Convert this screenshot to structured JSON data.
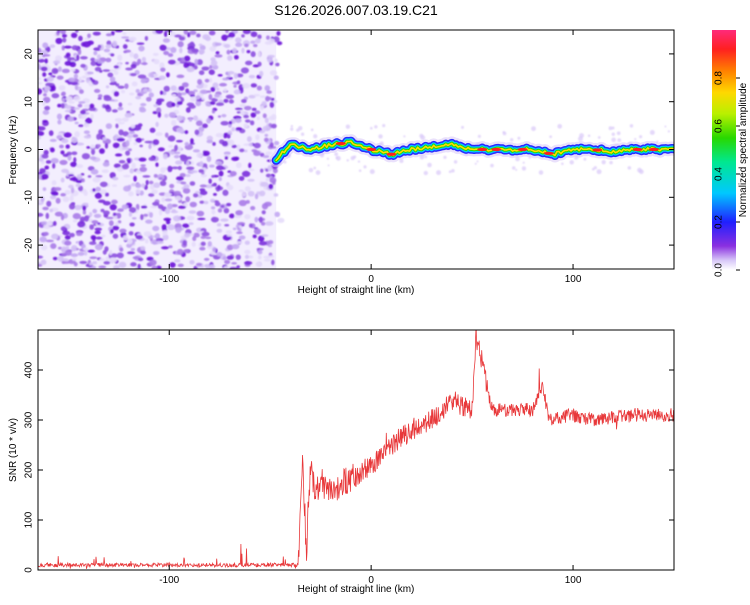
{
  "title": "S126.2026.007.03.19.C21",
  "chart_data": [
    {
      "type": "heatmap",
      "xlabel": "Height of straight line (km)",
      "ylabel": "Frequency (Hz)",
      "xlim": [
        -165,
        150
      ],
      "ylim": [
        -25,
        25
      ],
      "xticks": [
        -100,
        0,
        100
      ],
      "yticks": [
        -20,
        -10,
        0,
        10,
        20
      ],
      "noise_region_x": [
        -165,
        -47
      ],
      "signal_start_x": -47,
      "signal_trace": {
        "x": [
          -47,
          -40,
          -30,
          -20,
          -10,
          0,
          10,
          20,
          30,
          40,
          50,
          60,
          70,
          80,
          90,
          100,
          110,
          120,
          130,
          140,
          150
        ],
        "freq": [
          -2,
          1,
          0,
          1,
          1.5,
          0,
          -1,
          0,
          0.5,
          1,
          0,
          0,
          0,
          0,
          -1,
          0,
          0,
          -0.5,
          0,
          0,
          0
        ]
      },
      "colorbar": {
        "label": "Normalized spectral amplitude",
        "range": [
          0,
          1
        ],
        "ticks": [
          "0.0",
          "0.2",
          "0.4",
          "0.6",
          "0.8"
        ]
      }
    },
    {
      "type": "line",
      "xlabel": "Height of straight line (km)",
      "ylabel": "SNR (10 * v/v)",
      "xlim": [
        -165,
        150
      ],
      "ylim": [
        0,
        480
      ],
      "xticks": [
        -100,
        0,
        100
      ],
      "yticks": [
        0,
        100,
        200,
        300,
        400
      ],
      "color": "#e8383a",
      "series": {
        "name": "SNR",
        "x": [
          -165,
          -100,
          -60,
          -36,
          -34,
          -32,
          -30,
          -28,
          -25,
          -20,
          -15,
          -10,
          0,
          10,
          20,
          30,
          40,
          50,
          52,
          60,
          80,
          85,
          88,
          100,
          110,
          130,
          150
        ],
        "y": [
          10,
          10,
          10,
          10,
          220,
          40,
          220,
          150,
          180,
          150,
          170,
          180,
          210,
          250,
          280,
          300,
          340,
          320,
          470,
          320,
          320,
          370,
          300,
          310,
          300,
          310,
          310
        ]
      }
    }
  ]
}
